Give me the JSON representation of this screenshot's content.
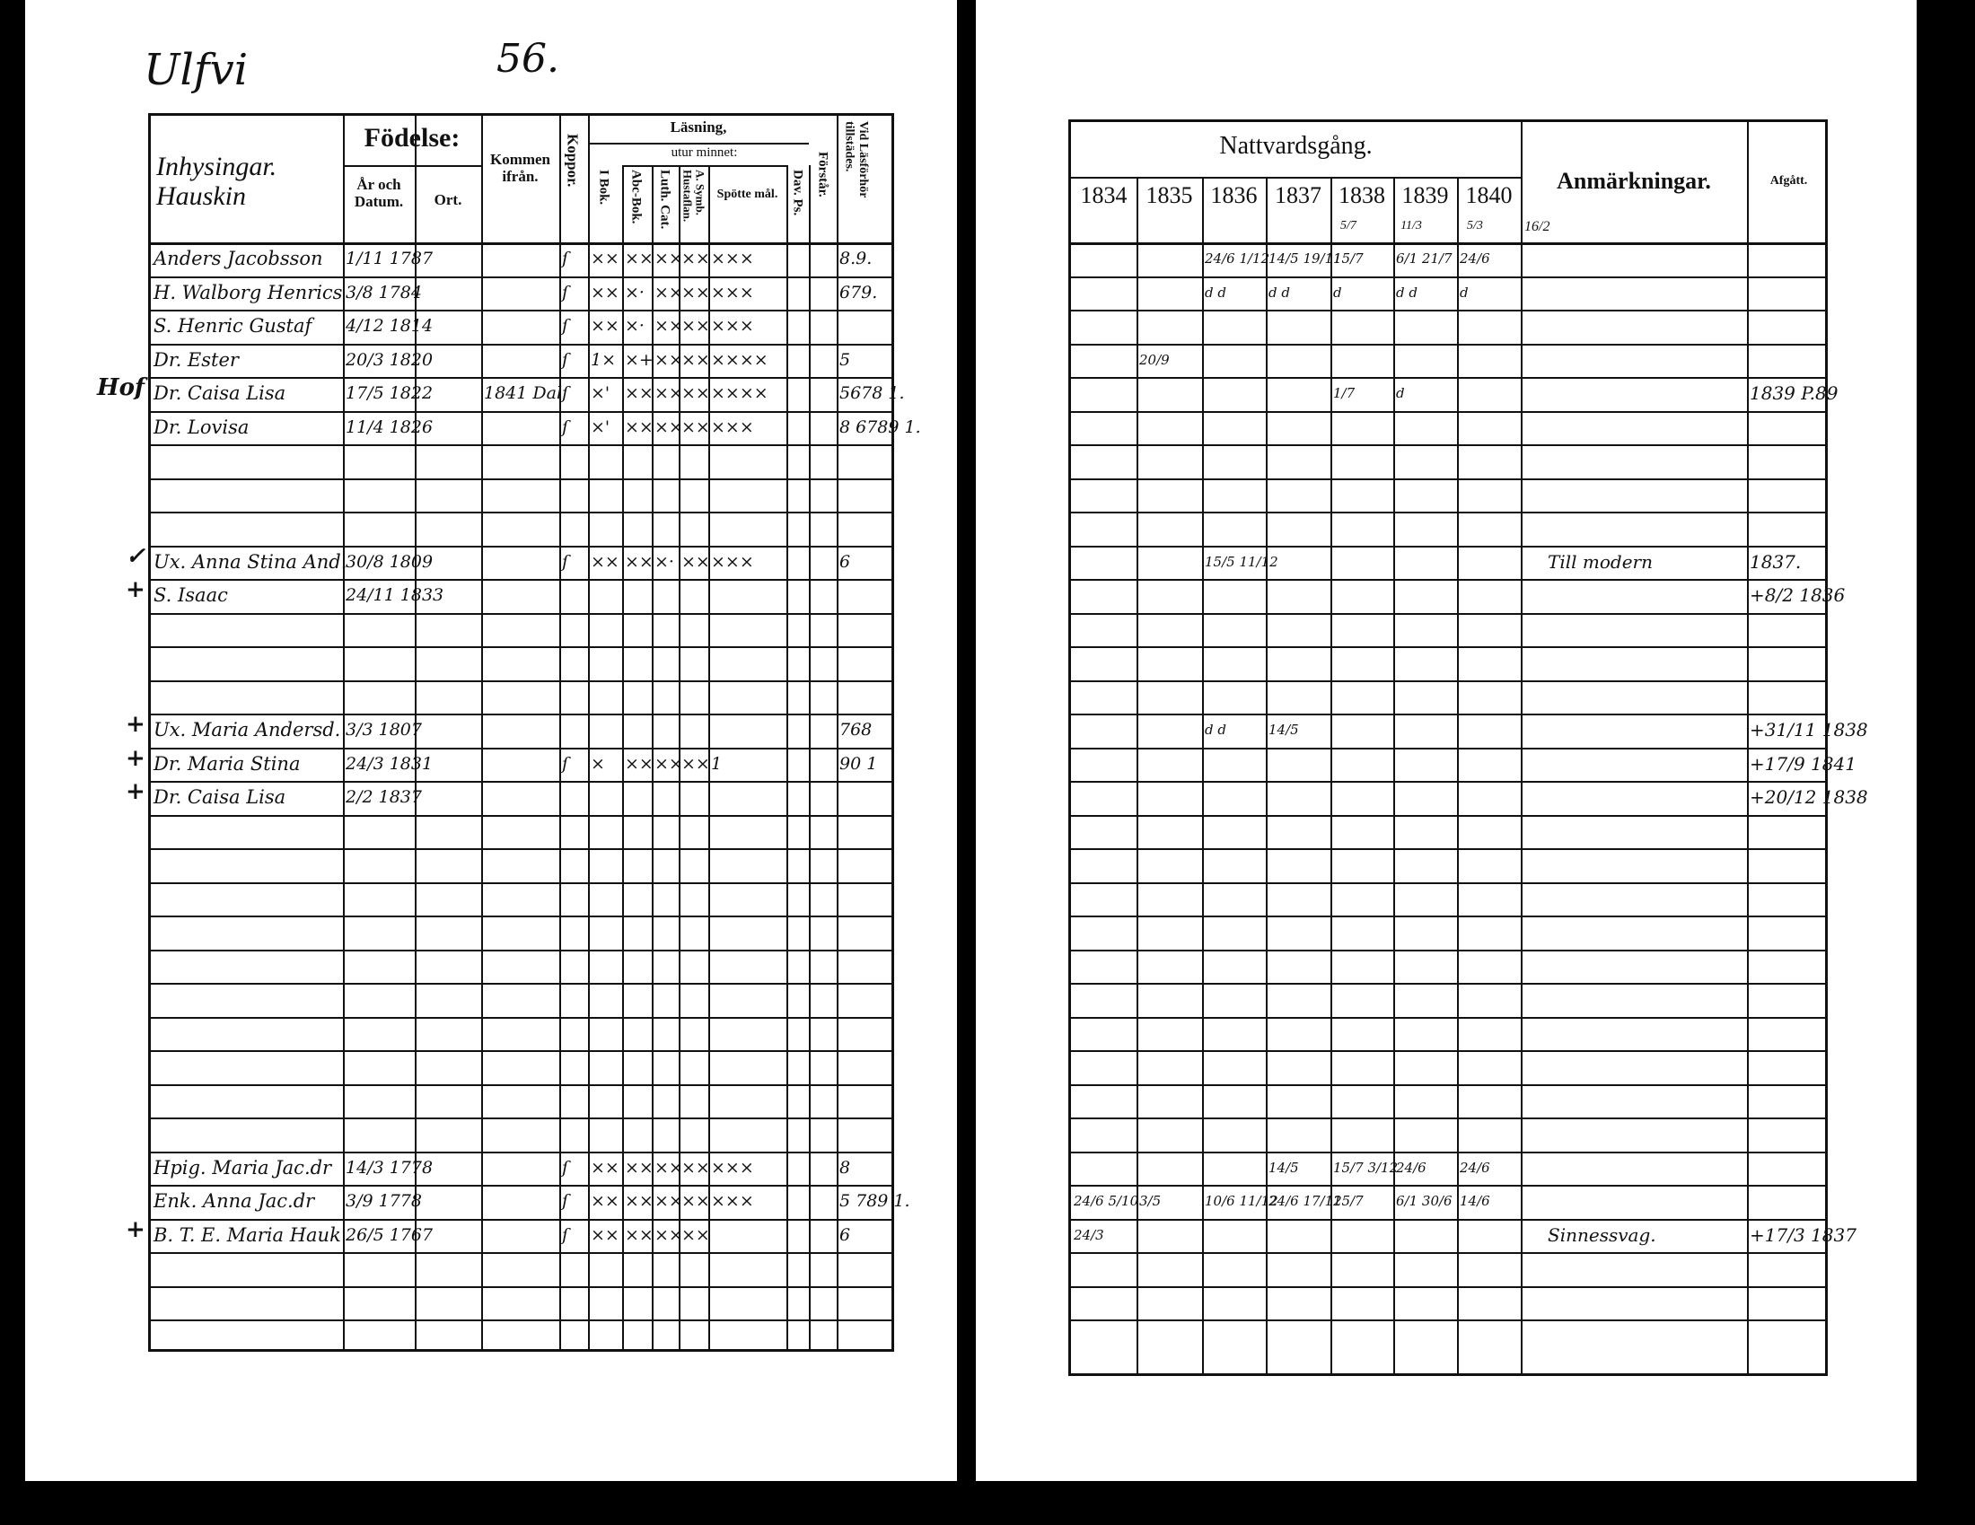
{
  "left_page": {
    "parish_title": "Ulfvi",
    "page_number": "56.",
    "headers": {
      "name": "Inhysingar. Hauskin",
      "fodelse": "Födelse:",
      "ar_datum": "År och Datum.",
      "ort": "Ort.",
      "kommen": "Kommen ifrån.",
      "koppor": "Koppor.",
      "lasning": "Läsning,",
      "utur_minnet": "utur minnet:",
      "i_bok": "I Bok.",
      "abc": "Abc-Bok.",
      "luth": "Luth. Cat.",
      "symb": "A. Symb. Hustaflan.",
      "spotte": "Spötte mål.",
      "dav": "Dav. Ps.",
      "forstar": "Förstår.",
      "vid": "Vid Läsförhör tillstädes."
    },
    "rows": [
      {
        "row": 0,
        "name": "Anders Jacobsson",
        "birth": "1/11 1787",
        "koppor": "ſ",
        "ibok": "××",
        "abc": "××",
        "luth": "××",
        "symb": "××",
        "spotte": "×××",
        "vid": "8.9."
      },
      {
        "row": 1,
        "name": "H. Walborg Henrics",
        "birth": "3/8 1784",
        "koppor": "ſ",
        "ibok": "××",
        "abc": "×·",
        "luth": "××",
        "symb": "××",
        "spotte": "×××",
        "vid": "679."
      },
      {
        "row": 2,
        "name": "S. Henric Gustaf",
        "birth": "4/12 1814",
        "koppor": "ſ",
        "ibok": "××",
        "abc": "×·",
        "luth": "××",
        "symb": "××",
        "spotte": "×××"
      },
      {
        "row": 3,
        "name": "Dr. Ester",
        "birth": "20/3 1820",
        "koppor": "ſ",
        "ibok": "1×",
        "abc": "×+",
        "luth": "××",
        "symb": "××",
        "spotte": "××××",
        "vid": "5"
      },
      {
        "row": 4,
        "name": "Dr. Caisa Lisa",
        "birth": "17/5 1822",
        "from": "1841 Dal",
        "koppor": "ſ",
        "ibok": "×'",
        "abc": "××",
        "luth": "××",
        "symb": "××",
        "spotte": "××××",
        "vid": "5678 1."
      },
      {
        "row": 5,
        "name": "Dr. Lovisa",
        "birth": "11/4 1826",
        "koppor": "ſ",
        "ibok": "×'",
        "abc": "××",
        "luth": "××",
        "symb": "××",
        "spotte": "×××",
        "vid": "8 6789 1."
      },
      {
        "row": 9,
        "name": "Ux. Anna Stina And.",
        "birth": "30/8 1809",
        "koppor": "ſ",
        "ibok": "××",
        "abc": "××",
        "luth": "×·",
        "symb": "××",
        "spotte": "×××",
        "vid": "6"
      },
      {
        "row": 10,
        "name": "S. Isaac",
        "birth": "24/11 1833"
      },
      {
        "row": 14,
        "name": "Ux. Maria Andersd.",
        "birth": "3/3 1807",
        "vid": "768"
      },
      {
        "row": 15,
        "name": "Dr. Maria Stina",
        "birth": "24/3 1831",
        "koppor": "ſ",
        "ibok": "×",
        "abc": "××",
        "luth": "××",
        "symb": "××",
        "spotte": "1",
        "vid": "90 1"
      },
      {
        "row": 16,
        "name": "Dr. Caisa Lisa",
        "birth": "2/2 1837"
      },
      {
        "row": 27,
        "name": "Hpig. Maria Jac.dr",
        "birth": "14/3 1778",
        "koppor": "ſ",
        "ibok": "××",
        "abc": "××",
        "luth": "××",
        "symb": "××",
        "spotte": "×××",
        "vid": "8"
      },
      {
        "row": 28,
        "name": "Enk. Anna Jac.dr",
        "birth": "3/9 1778",
        "koppor": "ſ",
        "ibok": "××",
        "abc": "××",
        "luth": "××",
        "symb": "××",
        "spotte": "×××",
        "vid": "5 789 1."
      },
      {
        "row": 29,
        "name": "B. T. E. Maria Hauk",
        "birth": "26/5 1767",
        "koppor": "ſ",
        "ibok": "××",
        "abc": "××",
        "luth": "××",
        "symb": "××",
        "vid": "6"
      }
    ],
    "margin_notes": [
      {
        "row": 4,
        "text": "Hof"
      },
      {
        "row": 9,
        "text": "✓"
      },
      {
        "row": 10,
        "text": "+"
      },
      {
        "row": 14,
        "text": "+"
      },
      {
        "row": 15,
        "text": "+"
      },
      {
        "row": 16,
        "text": "+"
      },
      {
        "row": 29,
        "text": "+"
      }
    ]
  },
  "right_page": {
    "headers": {
      "nattvardsgang": "Nattvardsgång.",
      "years": [
        "1834",
        "1835",
        "1836",
        "1837",
        "1838",
        "1839",
        "1840"
      ],
      "year_notes": [
        "",
        "",
        "",
        "",
        "5/7",
        "11/3",
        "5/3"
      ],
      "extra_note": "16/2",
      "anmarkningar": "Anmärkningar.",
      "afgatt": "Afgått."
    },
    "rows": [
      {
        "row": 0,
        "y1836": "24/6 1/12",
        "y1837": "14/5 19/11",
        "y1838": "15/7",
        "y1839": "6/1 21/7",
        "y1840": "24/6"
      },
      {
        "row": 1,
        "y1836": "d d",
        "y1837": "d d",
        "y1838": "d",
        "y1839": "d d",
        "y1840": "d"
      },
      {
        "row": 3,
        "y1835": "20/9"
      },
      {
        "row": 4,
        "y1838": "1/7",
        "y1839": "d",
        "afgatt": "1839 P.89"
      },
      {
        "row": 9,
        "y1836": "15/5 11/12",
        "anm": "Till modern",
        "afgatt": "1837."
      },
      {
        "row": 10,
        "afgatt": "+8/2 1836"
      },
      {
        "row": 14,
        "y1836": "d d",
        "y1837": "14/5",
        "afgatt": "+31/11 1838"
      },
      {
        "row": 15,
        "afgatt": "+17/9 1841"
      },
      {
        "row": 16,
        "afgatt": "+20/12 1838"
      },
      {
        "row": 27,
        "y1837": "14/5",
        "y1838": "15/7 3/12",
        "y1839": "24/6",
        "y1840": "24/6"
      },
      {
        "row": 28,
        "y1834": "24/6 5/10",
        "y1835": "3/5",
        "y1836": "10/6 11/12",
        "y1837": "24/6 17/12",
        "y1838": "15/7",
        "y1839": "6/1 30/6",
        "y1840": "14/6"
      },
      {
        "row": 29,
        "y1834": "24/3",
        "anm": "Sinnessvag.",
        "afgatt": "+17/3 1837"
      }
    ]
  }
}
